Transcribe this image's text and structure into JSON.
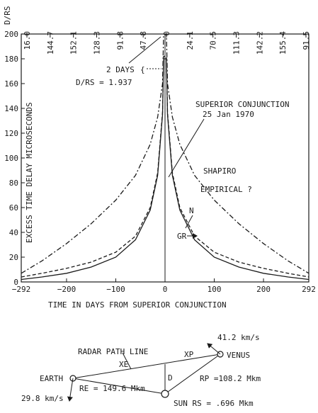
{
  "chart_data": {
    "type": "line",
    "xlabel": "TIME IN DAYS FROM SUPERIOR CONJUNCTION",
    "ylabel": "EXCESS TIME DELAY MICROSECONDS",
    "xlim": [
      -292,
      292
    ],
    "ylim": [
      0,
      200
    ],
    "x_ticks": [
      "-292",
      "-200",
      "-100",
      "0",
      "100",
      "200",
      "292"
    ],
    "y_ticks": [
      "0",
      "20",
      "40",
      "60",
      "80",
      "100",
      "120",
      "140",
      "160",
      "180",
      "200"
    ],
    "top_axis_label": "D/RS",
    "top_ticks": [
      "16.0",
      "144.7",
      "152.1",
      "128.3",
      "91.8",
      "47.8",
      "0",
      "24.1",
      "70.5",
      "111.3",
      "142.2",
      "155.4",
      "91.5"
    ],
    "series": [
      {
        "name": "SHAPIRO EMPIRICAL ?",
        "style": "dash-dot",
        "x": [
          -292,
          -250,
          -200,
          -150,
          -100,
          -60,
          -30,
          -15,
          -5,
          5,
          15,
          30,
          60,
          100,
          150,
          200,
          250,
          292
        ],
        "y": [
          7,
          17,
          31,
          47,
          66,
          86,
          111,
          133,
          160,
          160,
          133,
          111,
          86,
          66,
          47,
          31,
          17,
          7
        ]
      },
      {
        "name": "N",
        "style": "dashed",
        "x": [
          -292,
          -250,
          -200,
          -150,
          -100,
          -60,
          -30,
          -15,
          -5,
          5,
          15,
          30,
          60,
          100,
          150,
          200,
          250,
          292
        ],
        "y": [
          4,
          7,
          11,
          16,
          24,
          37,
          60,
          88,
          137,
          137,
          88,
          60,
          37,
          24,
          16,
          11,
          7,
          4
        ]
      },
      {
        "name": "GR",
        "style": "solid",
        "x": [
          -292,
          -250,
          -200,
          -150,
          -100,
          -60,
          -30,
          -15,
          -5,
          5,
          15,
          30,
          60,
          100,
          150,
          200,
          250,
          292
        ],
        "y": [
          2,
          4,
          7,
          12,
          20,
          34,
          58,
          86,
          135,
          135,
          86,
          58,
          34,
          20,
          12,
          7,
          4,
          2
        ]
      }
    ],
    "annotations": {
      "two_days": "2 DAYS",
      "d_rs": "D/RS = 1.937",
      "conjunction_title": "SUPERIOR CONJUNCTION",
      "conjunction_date": "25 Jan 1970",
      "shapiro_1": "SHAPIRO",
      "shapiro_2": "EMPIRICAL ?",
      "n_label": "N",
      "gr_label": "GR"
    }
  },
  "diagram": {
    "radar_path": "RADAR PATH LINE",
    "xe": "XE",
    "xp": "XP",
    "d": "D",
    "earth": "EARTH",
    "venus": "VENUS",
    "sun": "SUN RS = .696 Mkm",
    "re": "RE = 149.6 Mkm",
    "rp": "RP =108.2 Mkm",
    "earth_vel": "29.8 km/s",
    "venus_vel": "41.2 km/s"
  }
}
